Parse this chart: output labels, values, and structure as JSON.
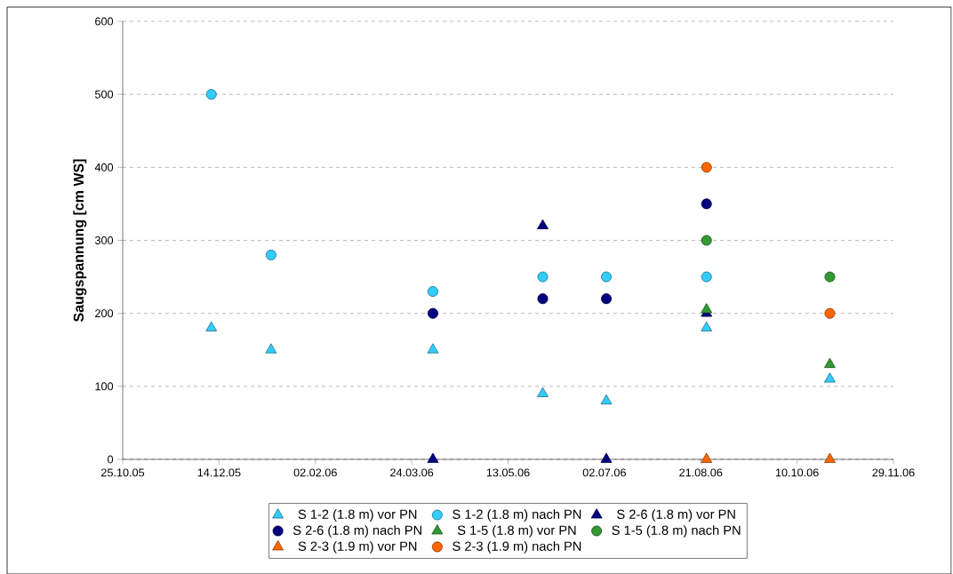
{
  "chart_data": {
    "type": "scatter",
    "ylabel": "Saugspannung [cm WS]",
    "xlim": [
      "2005-10-25",
      "2006-11-29"
    ],
    "ylim": [
      0,
      600
    ],
    "xticks": [
      {
        "value": "2005-10-25",
        "label": "25.10.05"
      },
      {
        "value": "2005-12-14",
        "label": "14.12.05"
      },
      {
        "value": "2006-02-02",
        "label": "02.02.06"
      },
      {
        "value": "2006-03-24",
        "label": "24.03.06"
      },
      {
        "value": "2006-05-13",
        "label": "13.05.06"
      },
      {
        "value": "2006-07-02",
        "label": "02.07.06"
      },
      {
        "value": "2006-08-21",
        "label": "21.08.06"
      },
      {
        "value": "2006-10-10",
        "label": "10.10.06"
      },
      {
        "value": "2006-11-29",
        "label": "29.11.06"
      }
    ],
    "yticks": [
      0,
      100,
      200,
      300,
      400,
      500,
      600
    ],
    "grid": "y",
    "legend": "bottom",
    "series": [
      {
        "name": "S 1-2 (1.8 m) vor PN",
        "color": "#33ccff",
        "marker": "triangle",
        "x": [
          "2005-12-10",
          "2006-01-10",
          "2006-04-04",
          "2006-05-31",
          "2006-07-03",
          "2006-08-24",
          "2006-10-27"
        ],
        "values": [
          180,
          150,
          150,
          90,
          80,
          180,
          110
        ]
      },
      {
        "name": "S 1-2 (1.8 m) nach PN",
        "color": "#33ccff",
        "marker": "circle",
        "x": [
          "2005-12-10",
          "2006-01-10",
          "2006-04-04",
          "2006-05-31",
          "2006-07-03",
          "2006-08-24"
        ],
        "values": [
          500,
          280,
          230,
          250,
          250,
          250
        ]
      },
      {
        "name": "S 2-6 (1.8 m) vor PN",
        "color": "#000080",
        "marker": "triangle",
        "x": [
          "2006-04-04",
          "2006-05-31",
          "2006-07-03",
          "2006-08-24"
        ],
        "values": [
          0,
          320,
          0,
          200
        ]
      },
      {
        "name": "S 2-6 (1.8 m) nach PN",
        "color": "#000080",
        "marker": "circle",
        "x": [
          "2006-04-04",
          "2006-05-31",
          "2006-07-03",
          "2006-08-24"
        ],
        "values": [
          200,
          220,
          220,
          350
        ]
      },
      {
        "name": "S 1-5 (1.8 m) vor PN",
        "color": "#339933",
        "marker": "triangle",
        "x": [
          "2006-08-24",
          "2006-10-27"
        ],
        "values": [
          205,
          130
        ]
      },
      {
        "name": "S 1-5 (1.8 m) nach PN",
        "color": "#339933",
        "marker": "circle",
        "x": [
          "2006-08-24",
          "2006-10-27"
        ],
        "values": [
          300,
          250
        ]
      },
      {
        "name": "S 2-3 (1.9 m) vor PN",
        "color": "#ff6600",
        "marker": "triangle",
        "x": [
          "2006-08-24",
          "2006-10-27"
        ],
        "values": [
          0,
          0
        ]
      },
      {
        "name": "S 2-3 (1.9 m) nach PN",
        "color": "#ff6600",
        "marker": "circle",
        "x": [
          "2006-08-24",
          "2006-10-27"
        ],
        "values": [
          400,
          200
        ]
      }
    ]
  }
}
